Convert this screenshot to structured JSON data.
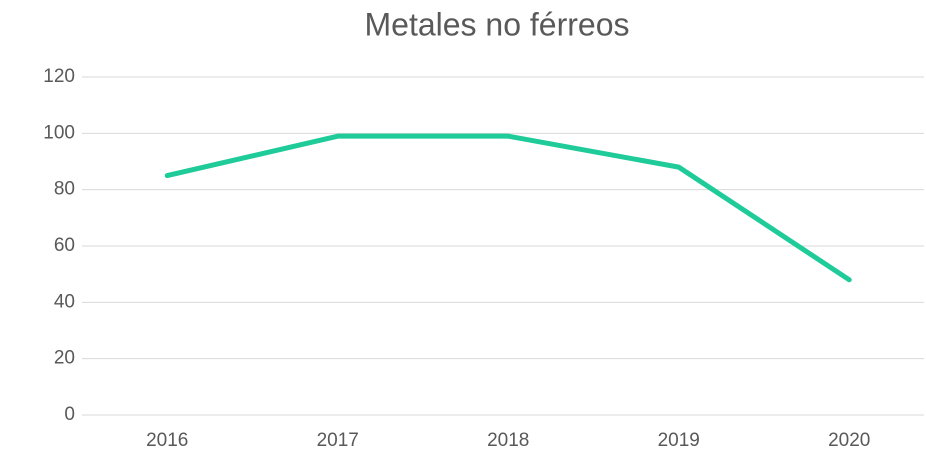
{
  "chart_data": {
    "type": "line",
    "title": "Metales no férreos",
    "categories": [
      "2016",
      "2017",
      "2018",
      "2019",
      "2020"
    ],
    "series": [
      {
        "name": "Metales no férreos",
        "color": "#1ecb99",
        "values": [
          85,
          99,
          99,
          88,
          48
        ]
      }
    ],
    "ylim": [
      0,
      120
    ],
    "yticks": [
      0,
      20,
      40,
      60,
      80,
      100,
      120
    ],
    "grid": true
  }
}
